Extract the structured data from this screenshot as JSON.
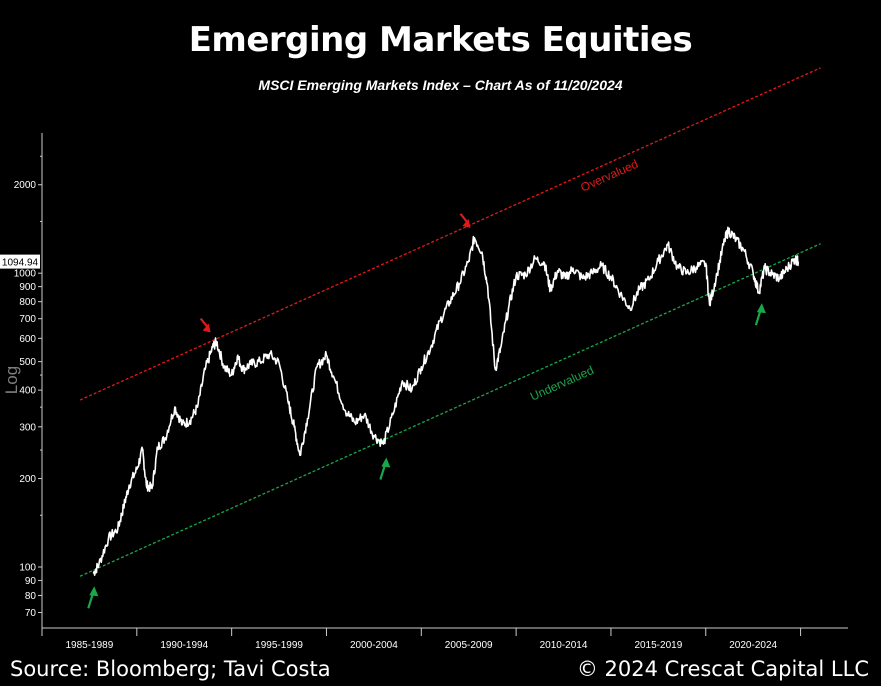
{
  "header": {
    "title": "Emerging Markets Equities",
    "subtitle": "MSCI Emerging Markets Index – Chart As of 11/20/2024"
  },
  "footer": {
    "source": "Source: Bloomberg; Tavi Costa",
    "copyright": "© 2024 Crescat Capital LLC"
  },
  "colors": {
    "background": "#000000",
    "series": "#ffffff",
    "overvalued": "#e01a1a",
    "undervalued": "#1aa64a",
    "axis": "#cccccc"
  },
  "chart_data": {
    "type": "line",
    "title": "Emerging Markets Equities",
    "subtitle": "MSCI Emerging Markets Index – Chart As of 11/20/2024",
    "ylabel": "Log",
    "yscale": "log",
    "ylim": [
      62,
      3000
    ],
    "y_ticks": [
      70,
      80,
      90,
      100,
      200,
      300,
      400,
      500,
      600,
      700,
      800,
      900,
      1000,
      2000
    ],
    "x_range": [
      1985,
      2027.5
    ],
    "x_categories": [
      "1985-1989",
      "1990-1994",
      "1995-1999",
      "2000-2004",
      "2005-2009",
      "2010-2014",
      "2015-2019",
      "2020-2024"
    ],
    "last_value_label": "1094.94",
    "series": [
      {
        "points": [
          [
            1987.7,
            95
          ],
          [
            1988.0,
            102
          ],
          [
            1988.5,
            125
          ],
          [
            1989.0,
            135
          ],
          [
            1989.3,
            160
          ],
          [
            1989.6,
            190
          ],
          [
            1990.0,
            215
          ],
          [
            1990.3,
            250
          ],
          [
            1990.5,
            190
          ],
          [
            1990.8,
            185
          ],
          [
            1991.1,
            255
          ],
          [
            1991.5,
            275
          ],
          [
            1992.0,
            350
          ],
          [
            1992.4,
            305
          ],
          [
            1992.8,
            315
          ],
          [
            1993.2,
            350
          ],
          [
            1993.6,
            470
          ],
          [
            1994.0,
            560
          ],
          [
            1994.2,
            585
          ],
          [
            1994.6,
            480
          ],
          [
            1995.0,
            450
          ],
          [
            1995.3,
            520
          ],
          [
            1995.6,
            470
          ],
          [
            1996.0,
            490
          ],
          [
            1996.5,
            500
          ],
          [
            1997.0,
            530
          ],
          [
            1997.5,
            495
          ],
          [
            1998.0,
            360
          ],
          [
            1998.3,
            300
          ],
          [
            1998.6,
            240
          ],
          [
            1999.0,
            320
          ],
          [
            1999.5,
            480
          ],
          [
            2000.0,
            525
          ],
          [
            2000.4,
            440
          ],
          [
            2001.0,
            340
          ],
          [
            2001.5,
            310
          ],
          [
            2002.0,
            330
          ],
          [
            2002.5,
            280
          ],
          [
            2003.0,
            262
          ],
          [
            2003.5,
            330
          ],
          [
            2004.0,
            430
          ],
          [
            2004.5,
            400
          ],
          [
            2005.0,
            480
          ],
          [
            2005.5,
            560
          ],
          [
            2006.0,
            690
          ],
          [
            2006.5,
            800
          ],
          [
            2007.0,
            920
          ],
          [
            2007.5,
            1100
          ],
          [
            2007.8,
            1320
          ],
          [
            2008.2,
            1180
          ],
          [
            2008.5,
            900
          ],
          [
            2008.9,
            470
          ],
          [
            2009.2,
            560
          ],
          [
            2009.6,
            760
          ],
          [
            2010.0,
            980
          ],
          [
            2010.5,
            990
          ],
          [
            2011.0,
            1120
          ],
          [
            2011.5,
            1080
          ],
          [
            2011.8,
            880
          ],
          [
            2012.2,
            1020
          ],
          [
            2012.6,
            960
          ],
          [
            2013.0,
            1040
          ],
          [
            2013.5,
            960
          ],
          [
            2014.0,
            1000
          ],
          [
            2014.5,
            1060
          ],
          [
            2015.0,
            970
          ],
          [
            2015.5,
            850
          ],
          [
            2016.0,
            760
          ],
          [
            2016.5,
            880
          ],
          [
            2017.0,
            950
          ],
          [
            2017.5,
            1100
          ],
          [
            2018.0,
            1250
          ],
          [
            2018.5,
            1050
          ],
          [
            2019.0,
            1000
          ],
          [
            2019.5,
            1050
          ],
          [
            2020.0,
            1080
          ],
          [
            2020.2,
            780
          ],
          [
            2020.6,
            1000
          ],
          [
            2021.0,
            1300
          ],
          [
            2021.2,
            1400
          ],
          [
            2021.6,
            1300
          ],
          [
            2022.0,
            1200
          ],
          [
            2022.5,
            1000
          ],
          [
            2022.8,
            860
          ],
          [
            2023.1,
            1040
          ],
          [
            2023.5,
            990
          ],
          [
            2023.9,
            960
          ],
          [
            2024.3,
            1040
          ],
          [
            2024.7,
            1120
          ],
          [
            2024.88,
            1095
          ]
        ]
      }
    ],
    "trendlines": [
      {
        "name": "Overvalued",
        "from": [
          1985.0,
          370
        ],
        "to": [
          2025.0,
          5000
        ]
      },
      {
        "name": "Undervalued",
        "from": [
          1985.0,
          93
        ],
        "to": [
          2025.0,
          1260
        ]
      }
    ],
    "annotations": [
      {
        "type": "arrow-down",
        "color": "red",
        "x": 1994.0,
        "y": 590
      },
      {
        "type": "arrow-down",
        "color": "red",
        "x": 2007.7,
        "y": 1340
      },
      {
        "type": "arrow-up",
        "color": "green",
        "x": 1987.6,
        "y": 93
      },
      {
        "type": "arrow-up",
        "color": "green",
        "x": 2003.0,
        "y": 255
      },
      {
        "type": "arrow-up",
        "color": "green",
        "x": 2022.8,
        "y": 855
      }
    ]
  }
}
